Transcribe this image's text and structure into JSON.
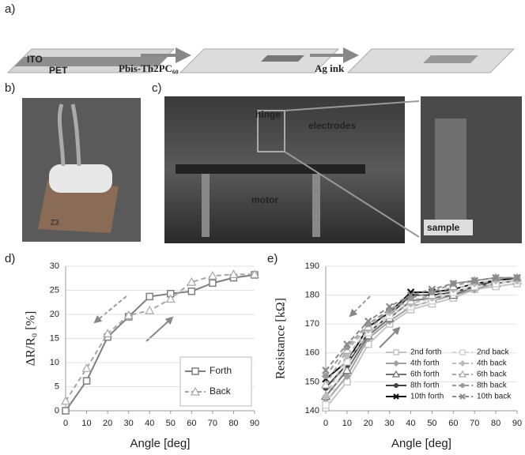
{
  "panel_labels": [
    "a)",
    "b)",
    "c)",
    "d)",
    "e)"
  ],
  "photo_labels": {
    "ito": "ITO",
    "pet": "PET",
    "step1": "Pbis-Th2PC₆₀",
    "step2": "Ag ink",
    "hinge": "hinge",
    "electrodes": "electrodes",
    "motor": "motor",
    "sample": "sample",
    "tag": "Z3"
  },
  "chart_data": [
    {
      "type": "line",
      "xlabel": "Angle [deg]",
      "ylabel": "ΔR/R₀ [%]",
      "x": [
        0,
        10,
        20,
        30,
        40,
        50,
        60,
        70,
        80,
        90
      ],
      "xlim": [
        0,
        90
      ],
      "xticks": [
        0,
        10,
        20,
        30,
        40,
        50,
        60,
        70,
        80,
        90
      ],
      "ylim": [
        0,
        30
      ],
      "yticks": [
        0,
        5,
        10,
        15,
        20,
        25,
        30
      ],
      "grid": true,
      "legend": "lower right",
      "legend_columns": 1,
      "series": [
        {
          "name": "Forth",
          "color": "#7f7f7f",
          "marker": "square",
          "dashed": false,
          "values": [
            0,
            6.2,
            15.3,
            19.5,
            23.7,
            24.3,
            24.8,
            26.5,
            27.6,
            28.2
          ]
        },
        {
          "name": "Back",
          "color": "#a6a6a6",
          "marker": "triangle",
          "dashed": true,
          "values": [
            2,
            8.8,
            16,
            19.8,
            20.8,
            23.2,
            26.7,
            28,
            28.3,
            28.3
          ]
        }
      ]
    },
    {
      "type": "line",
      "xlabel": "Angle [deg]",
      "ylabel": "Resistance [kΩ]",
      "x": [
        0,
        10,
        20,
        30,
        40,
        50,
        60,
        70,
        80,
        90
      ],
      "xlim": [
        0,
        90
      ],
      "xticks": [
        0,
        10,
        20,
        30,
        40,
        50,
        60,
        70,
        80,
        90
      ],
      "ylim": [
        140,
        190
      ],
      "yticks": [
        140,
        150,
        160,
        170,
        180,
        190
      ],
      "grid": true,
      "legend": "lower right",
      "legend_columns": 2,
      "series": [
        {
          "name": "2nd forth",
          "color": "#c4c4c4",
          "marker": "square",
          "dashed": false,
          "values": [
            141,
            150,
            163,
            170,
            175,
            177,
            179,
            182,
            183,
            184
          ]
        },
        {
          "name": "4th forth",
          "color": "#a0a0a0",
          "marker": "diamond",
          "dashed": false,
          "values": [
            143,
            152,
            165,
            171,
            176,
            178,
            180,
            182,
            184,
            185
          ]
        },
        {
          "name": "6th forth",
          "color": "#707070",
          "marker": "triangle",
          "dashed": false,
          "values": [
            145,
            154,
            166,
            172,
            178,
            179,
            180,
            183,
            184,
            185
          ]
        },
        {
          "name": "8th forth",
          "color": "#404040",
          "marker": "circle",
          "dashed": false,
          "values": [
            148,
            156,
            167,
            173,
            180,
            180,
            181,
            183,
            185,
            186
          ]
        },
        {
          "name": "10th forth",
          "color": "#111111",
          "marker": "x",
          "dashed": false,
          "values": [
            151,
            157,
            169,
            174,
            181,
            181,
            182,
            184,
            185,
            186
          ]
        },
        {
          "name": "2nd back",
          "color": "#d4d4d4",
          "marker": "square",
          "dashed": true,
          "values": [
            142,
            157,
            167,
            173,
            176,
            178,
            181,
            183,
            184,
            185
          ]
        },
        {
          "name": "4th back",
          "color": "#bcbcbc",
          "marker": "diamond",
          "dashed": true,
          "values": [
            145,
            159,
            168,
            174,
            177,
            179,
            182,
            184,
            185,
            185
          ]
        },
        {
          "name": "6th back",
          "color": "#a8a8a8",
          "marker": "triangle",
          "dashed": true,
          "values": [
            149,
            161,
            169,
            175,
            178,
            180,
            183,
            185,
            186,
            186
          ]
        },
        {
          "name": "8th back",
          "color": "#989898",
          "marker": "circle",
          "dashed": true,
          "values": [
            152,
            162,
            170,
            175,
            179,
            181,
            184,
            185,
            186,
            186
          ]
        },
        {
          "name": "10th back",
          "color": "#8a8a8a",
          "marker": "x",
          "dashed": true,
          "values": [
            154,
            163,
            171,
            176,
            180,
            182,
            184,
            185,
            186,
            186
          ]
        }
      ]
    }
  ]
}
